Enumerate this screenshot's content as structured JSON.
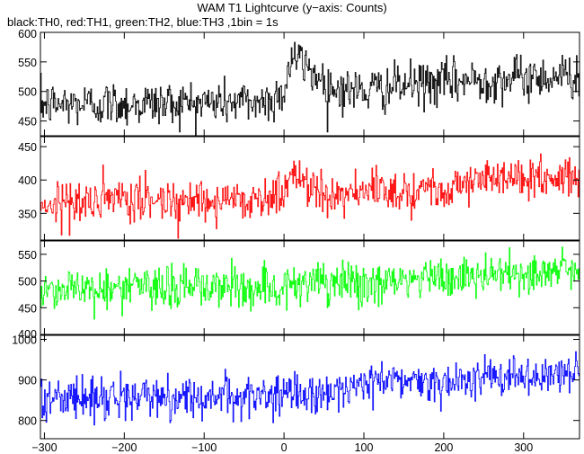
{
  "chart_data": {
    "type": "line",
    "title": "WAM T1 Lightcurve (y−axis: Counts)",
    "subtitle": "black:TH0, red:TH1, green:TH2, blue:TH3 ,1bin = 1s",
    "x_range": [
      -305,
      370
    ],
    "x_ticks": [
      -300,
      -200,
      -100,
      0,
      100,
      200,
      300
    ],
    "x_tick_labels": [
      "−300",
      "−200",
      "−100",
      "0",
      "100",
      "200",
      "300"
    ],
    "panels": [
      {
        "color": "#000000",
        "ylim": [
          425,
          600
        ],
        "y_ticks": [
          450,
          500,
          550,
          600
        ],
        "y_tick_labels": [
          "450",
          "500",
          "550",
          "600"
        ],
        "trend_points": [
          [
            -305,
            478
          ],
          [
            -150,
            480
          ],
          [
            -20,
            483
          ],
          [
            0,
            500
          ],
          [
            10,
            560
          ],
          [
            30,
            540
          ],
          [
            60,
            505
          ],
          [
            100,
            500
          ],
          [
            150,
            510
          ],
          [
            250,
            520
          ],
          [
            370,
            528
          ]
        ],
        "noise_amplitude": 42
      },
      {
        "color": "#ff0000",
        "ylim": [
          310,
          465
        ],
        "y_ticks": [
          350,
          400,
          450
        ],
        "y_tick_labels": [
          "350",
          "400",
          "450"
        ],
        "trend_points": [
          [
            -305,
            365
          ],
          [
            -150,
            370
          ],
          [
            -20,
            372
          ],
          [
            0,
            380
          ],
          [
            10,
            410
          ],
          [
            30,
            395
          ],
          [
            60,
            380
          ],
          [
            100,
            380
          ],
          [
            200,
            390
          ],
          [
            250,
            400
          ],
          [
            370,
            405
          ]
        ],
        "noise_amplitude": 35
      },
      {
        "color": "#00ff00",
        "ylim": [
          400,
          575
        ],
        "y_ticks": [
          400,
          450,
          500,
          550
        ],
        "y_tick_labels": [
          "400",
          "450",
          "500",
          "550"
        ],
        "trend_points": [
          [
            -305,
            485
          ],
          [
            -150,
            488
          ],
          [
            0,
            490
          ],
          [
            100,
            495
          ],
          [
            200,
            505
          ],
          [
            300,
            515
          ],
          [
            370,
            520
          ]
        ],
        "noise_amplitude": 45
      },
      {
        "color": "#0000ff",
        "ylim": [
          755,
          1010
        ],
        "y_ticks": [
          800,
          900,
          1000
        ],
        "y_tick_labels": [
          "800",
          "900",
          "1000"
        ],
        "trend_points": [
          [
            -305,
            855
          ],
          [
            -150,
            858
          ],
          [
            0,
            860
          ],
          [
            80,
            875
          ],
          [
            100,
            895
          ],
          [
            200,
            900
          ],
          [
            300,
            905
          ],
          [
            370,
            915
          ]
        ],
        "noise_amplitude": 55
      }
    ]
  }
}
